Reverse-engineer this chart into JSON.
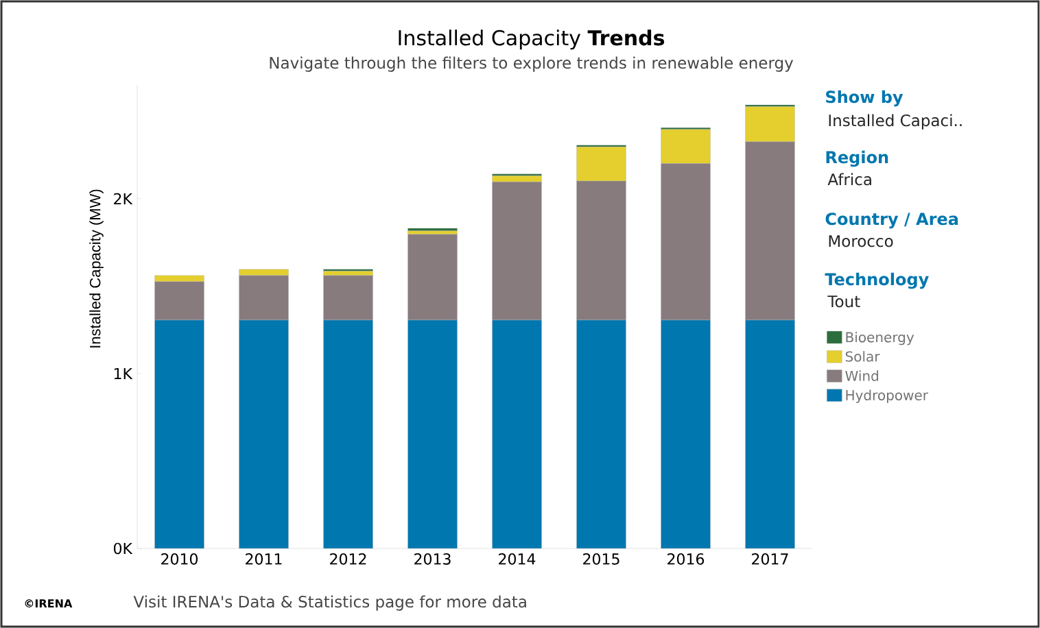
{
  "chart_data": {
    "type": "bar",
    "title": "Installed Capacity **Trends**",
    "subtitle": "Navigate through the filters to explore trends in renewable energy",
    "ylabel": "Installed Capacity (MW)",
    "categories": [
      "2010",
      "2011",
      "2012",
      "2013",
      "2014",
      "2015",
      "2016",
      "2017"
    ],
    "stacked": true,
    "series": [
      {
        "name": "Hydropower",
        "color": "#0077ae",
        "values": [
          1306,
          1306,
          1306,
          1306,
          1306,
          1306,
          1306,
          1306
        ]
      },
      {
        "name": "Wind",
        "color": "#877b7d",
        "values": [
          220,
          255,
          255,
          490,
          790,
          795,
          895,
          1020
        ]
      },
      {
        "name": "Solar",
        "color": "#e4cf2e",
        "values": [
          35,
          35,
          25,
          20,
          35,
          195,
          195,
          200
        ]
      },
      {
        "name": "Bioenergy",
        "color": "#2b6e3d",
        "values": [
          0,
          0,
          10,
          15,
          10,
          10,
          10,
          10
        ]
      }
    ],
    "ylim": [
      0,
      2650
    ],
    "yticks": [
      {
        "value": 0,
        "label": "0K"
      },
      {
        "value": 1000,
        "label": "1K"
      },
      {
        "value": 2000,
        "label": "2K"
      }
    ],
    "legend": "right",
    "annotations": [
      "Show by",
      "Installed Capaci..",
      "Region",
      "Africa",
      "Country / Area",
      "Morocco",
      "Technology",
      "Tout",
      "©IRENA",
      "Visit IRENA's Data & Statistics page for more data"
    ]
  }
}
